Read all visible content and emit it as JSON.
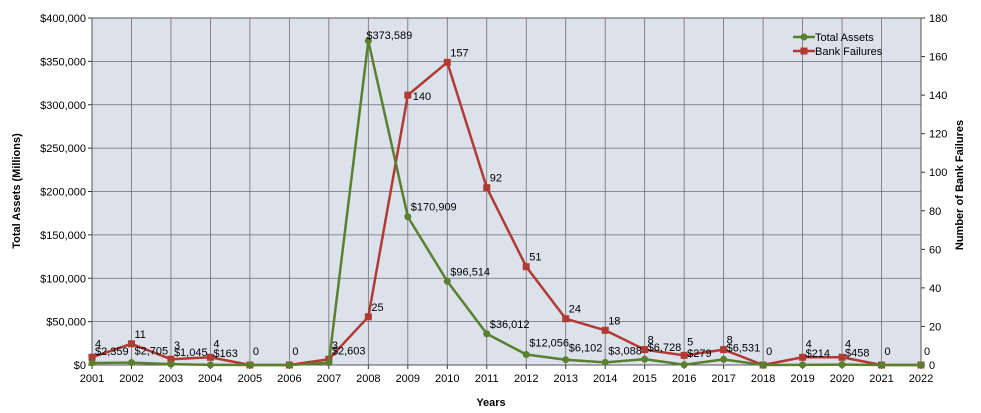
{
  "chart_data": {
    "type": "line",
    "title": "",
    "xlabel": "Years",
    "ylabel_left": "Total Assets (Millions)",
    "ylabel_right": "Number of Bank Failures",
    "x": [
      "2001",
      "2002",
      "2003",
      "2004",
      "2005",
      "2006",
      "2007",
      "2008",
      "2009",
      "2010",
      "2011",
      "2012",
      "2013",
      "2014",
      "2015",
      "2016",
      "2017",
      "2018",
      "2019",
      "2020",
      "2021",
      "2022"
    ],
    "ylim_left": [
      0,
      400000
    ],
    "ylim_right": [
      0,
      180
    ],
    "y_ticks_left": [
      "$0",
      "$50,000",
      "$100,000",
      "$150,000",
      "$200,000",
      "$250,000",
      "$300,000",
      "$350,000",
      "$400,000"
    ],
    "y_ticks_right": [
      "0",
      "20",
      "40",
      "60",
      "80",
      "100",
      "120",
      "140",
      "160",
      "180"
    ],
    "grid": true,
    "legend_position": "top-right",
    "series": [
      {
        "name": "Total Assets",
        "axis": "left",
        "color": "#5a7f2e",
        "marker": "circle",
        "values": [
          2359,
          2705,
          1045,
          163,
          0,
          0,
          2603,
          373589,
          170909,
          96514,
          36012,
          12056,
          6102,
          3088,
          6728,
          279,
          6531,
          0,
          214,
          458,
          0,
          0
        ],
        "labels": [
          "$2,359",
          "$2,705",
          "$1,045",
          "$163",
          "",
          "",
          "$2,603",
          "$373,589",
          "$170,909",
          "$96,514",
          "$36,012",
          "$12,056",
          "$6,102",
          "$3,088",
          "$6,728",
          "$279",
          "$6,531",
          "",
          "$214",
          "$458",
          "",
          ""
        ]
      },
      {
        "name": "Bank Failures",
        "axis": "right",
        "color": "#b13a32",
        "marker": "square",
        "values": [
          4,
          11,
          3,
          4,
          0,
          0,
          3,
          25,
          140,
          157,
          92,
          51,
          24,
          18,
          8,
          5,
          8,
          0,
          4,
          4,
          0,
          0
        ],
        "labels": [
          "4",
          "11",
          "3",
          "4",
          "0",
          "0",
          "3",
          "25",
          "140",
          "157",
          "92",
          "51",
          "24",
          "18",
          "8",
          "5",
          "8",
          "0",
          "4",
          "4",
          "0",
          "0"
        ]
      }
    ]
  }
}
